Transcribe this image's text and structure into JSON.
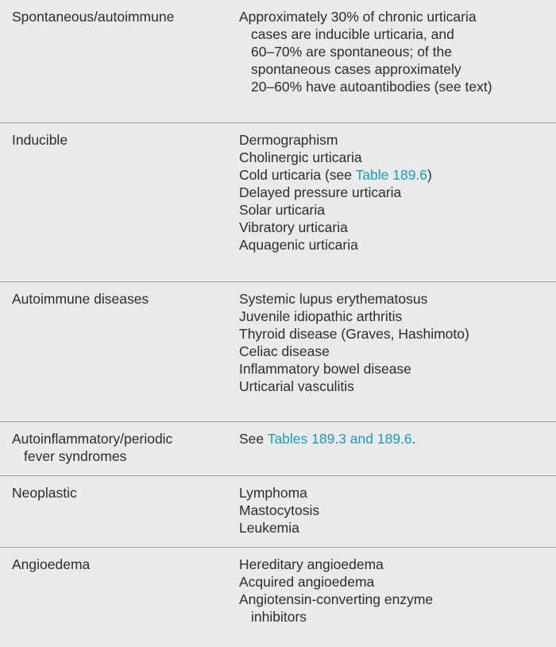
{
  "rows": [
    {
      "category": [
        "Spontaneous/autoimmune"
      ],
      "items": [
        "Approximately 30% of chronic urticaria",
        "cases are inducible urticaria, and",
        "60–70% are spontaneous; of the",
        "spontaneous cases approximately",
        "20–60% have autoantibodies (see text)"
      ]
    },
    {
      "category": [
        "Inducible"
      ],
      "items": [
        "Dermographism",
        "Cholinergic urticaria",
        {
          "pre": "Cold urticaria (see ",
          "link": "Table 189.6",
          "post": ")"
        },
        "Delayed pressure urticaria",
        "Solar urticaria",
        "Vibratory urticaria",
        "Aquagenic urticaria"
      ]
    },
    {
      "category": [
        "Autoimmune diseases"
      ],
      "items": [
        "Systemic lupus erythematosus",
        "Juvenile idiopathic arthritis",
        "Thyroid disease (Graves, Hashimoto)",
        "Celiac disease",
        "Inflammatory bowel disease",
        "Urticarial vasculitis"
      ]
    },
    {
      "category": [
        "Autoinflammatory/periodic",
        "fever syndromes"
      ],
      "items": [
        {
          "pre": "See ",
          "link": "Tables 189.3 and 189.6",
          "post": "."
        }
      ]
    },
    {
      "category": [
        "Neoplastic"
      ],
      "items": [
        "Lymphoma",
        "Mastocytosis",
        "Leukemia"
      ]
    },
    {
      "category": [
        "Angioedema"
      ],
      "items": [
        "Hereditary angioedema",
        "Acquired angioedema",
        "Angiotensin-converting enzyme",
        "inhibitors"
      ]
    }
  ],
  "colors": {
    "link": "#1a9bb5",
    "background": "#e8ebea",
    "divider": "#9aa3a3"
  }
}
